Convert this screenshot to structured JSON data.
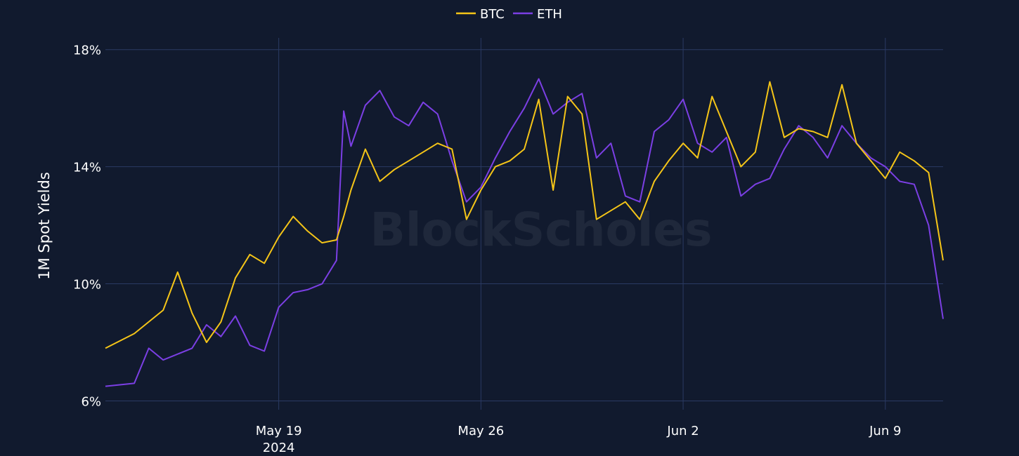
{
  "colors": {
    "background": "#111a2e",
    "grid": "#2a3a63",
    "btc": "#f5c518",
    "eth": "#7b3fe4"
  },
  "watermark": "BlockScholes",
  "chart_data": {
    "type": "line",
    "title": "",
    "xlabel": "",
    "ylabel": "1M Spot Yields",
    "y_unit": "%",
    "x_range": [
      "2024-05-13",
      "2024-06-11"
    ],
    "ylim": [
      5.7,
      18.4
    ],
    "yticks": [
      6,
      10,
      14,
      18
    ],
    "ytick_labels": [
      "6%",
      "10%",
      "14%",
      "18%"
    ],
    "xticks": [
      "2024-05-19",
      "2024-05-26",
      "2024-06-02",
      "2024-06-09"
    ],
    "xtick_labels": [
      "May 19",
      "May 26",
      "Jun 2",
      "Jun 9"
    ],
    "xtick_sublabels": [
      "2024",
      "",
      "",
      ""
    ],
    "grid": true,
    "legend_position": "top-center",
    "series": [
      {
        "name": "BTC",
        "color": "#f5c518",
        "points": [
          [
            "2024-05-13",
            7.8
          ],
          [
            "2024-05-14",
            8.3
          ],
          [
            "2024-05-15",
            9.1
          ],
          [
            "2024-05-15 12:00",
            10.4
          ],
          [
            "2024-05-16",
            9.0
          ],
          [
            "2024-05-16 12:00",
            8.0
          ],
          [
            "2024-05-17",
            8.7
          ],
          [
            "2024-05-17 12:00",
            10.2
          ],
          [
            "2024-05-18",
            11.0
          ],
          [
            "2024-05-18 12:00",
            10.7
          ],
          [
            "2024-05-19",
            11.6
          ],
          [
            "2024-05-19 12:00",
            12.3
          ],
          [
            "2024-05-20",
            11.8
          ],
          [
            "2024-05-20 12:00",
            11.4
          ],
          [
            "2024-05-21",
            11.5
          ],
          [
            "2024-05-21 06:00",
            12.3
          ],
          [
            "2024-05-21 12:00",
            13.2
          ],
          [
            "2024-05-22",
            14.6
          ],
          [
            "2024-05-22 12:00",
            13.5
          ],
          [
            "2024-05-23",
            13.9
          ],
          [
            "2024-05-23 12:00",
            14.2
          ],
          [
            "2024-05-24",
            14.5
          ],
          [
            "2024-05-24 12:00",
            14.8
          ],
          [
            "2024-05-25",
            14.6
          ],
          [
            "2024-05-25 12:00",
            12.2
          ],
          [
            "2024-05-26",
            13.2
          ],
          [
            "2024-05-26 12:00",
            14.0
          ],
          [
            "2024-05-27",
            14.2
          ],
          [
            "2024-05-27 12:00",
            14.6
          ],
          [
            "2024-05-28",
            16.3
          ],
          [
            "2024-05-28 12:00",
            13.2
          ],
          [
            "2024-05-29",
            16.4
          ],
          [
            "2024-05-29 12:00",
            15.8
          ],
          [
            "2024-05-30",
            12.2
          ],
          [
            "2024-05-30 12:00",
            12.5
          ],
          [
            "2024-05-31",
            12.8
          ],
          [
            "2024-05-31 12:00",
            12.2
          ],
          [
            "2024-06-01",
            13.5
          ],
          [
            "2024-06-01 12:00",
            14.2
          ],
          [
            "2024-06-02",
            14.8
          ],
          [
            "2024-06-02 12:00",
            14.3
          ],
          [
            "2024-06-03",
            16.4
          ],
          [
            "2024-06-03 12:00",
            15.2
          ],
          [
            "2024-06-04",
            14.0
          ],
          [
            "2024-06-04 12:00",
            14.5
          ],
          [
            "2024-06-05",
            16.9
          ],
          [
            "2024-06-05 12:00",
            15.0
          ],
          [
            "2024-06-06",
            15.3
          ],
          [
            "2024-06-06 12:00",
            15.2
          ],
          [
            "2024-06-07",
            15.0
          ],
          [
            "2024-06-07 12:00",
            16.8
          ],
          [
            "2024-06-08",
            14.8
          ],
          [
            "2024-06-08 12:00",
            14.2
          ],
          [
            "2024-06-09",
            13.6
          ],
          [
            "2024-06-09 12:00",
            14.5
          ],
          [
            "2024-06-10",
            14.2
          ],
          [
            "2024-06-10 12:00",
            13.8
          ],
          [
            "2024-06-11",
            10.8
          ]
        ]
      },
      {
        "name": "ETH",
        "color": "#7b3fe4",
        "points": [
          [
            "2024-05-13",
            6.5
          ],
          [
            "2024-05-14",
            6.6
          ],
          [
            "2024-05-14 12:00",
            7.8
          ],
          [
            "2024-05-15",
            7.4
          ],
          [
            "2024-05-16",
            7.8
          ],
          [
            "2024-05-16 12:00",
            8.6
          ],
          [
            "2024-05-17",
            8.2
          ],
          [
            "2024-05-17 12:00",
            8.9
          ],
          [
            "2024-05-18",
            7.9
          ],
          [
            "2024-05-18 12:00",
            7.7
          ],
          [
            "2024-05-19",
            9.2
          ],
          [
            "2024-05-19 12:00",
            9.7
          ],
          [
            "2024-05-20",
            9.8
          ],
          [
            "2024-05-20 12:00",
            10.0
          ],
          [
            "2024-05-21",
            10.8
          ],
          [
            "2024-05-21 06:00",
            15.9
          ],
          [
            "2024-05-21 12:00",
            14.7
          ],
          [
            "2024-05-22",
            16.1
          ],
          [
            "2024-05-22 12:00",
            16.6
          ],
          [
            "2024-05-23",
            15.7
          ],
          [
            "2024-05-23 12:00",
            15.4
          ],
          [
            "2024-05-24",
            16.2
          ],
          [
            "2024-05-24 12:00",
            15.8
          ],
          [
            "2024-05-25",
            14.2
          ],
          [
            "2024-05-25 12:00",
            12.8
          ],
          [
            "2024-05-26",
            13.3
          ],
          [
            "2024-05-26 12:00",
            14.3
          ],
          [
            "2024-05-27",
            15.2
          ],
          [
            "2024-05-27 12:00",
            16.0
          ],
          [
            "2024-05-28",
            17.0
          ],
          [
            "2024-05-28 12:00",
            15.8
          ],
          [
            "2024-05-29",
            16.2
          ],
          [
            "2024-05-29 12:00",
            16.5
          ],
          [
            "2024-05-30",
            14.3
          ],
          [
            "2024-05-30 12:00",
            14.8
          ],
          [
            "2024-05-31",
            13.0
          ],
          [
            "2024-05-31 12:00",
            12.8
          ],
          [
            "2024-06-01",
            15.2
          ],
          [
            "2024-06-01 12:00",
            15.6
          ],
          [
            "2024-06-02",
            16.3
          ],
          [
            "2024-06-02 12:00",
            14.8
          ],
          [
            "2024-06-03",
            14.5
          ],
          [
            "2024-06-03 12:00",
            15.0
          ],
          [
            "2024-06-04",
            13.0
          ],
          [
            "2024-06-04 12:00",
            13.4
          ],
          [
            "2024-06-05",
            13.6
          ],
          [
            "2024-06-05 12:00",
            14.6
          ],
          [
            "2024-06-06",
            15.4
          ],
          [
            "2024-06-06 12:00",
            15.0
          ],
          [
            "2024-06-07",
            14.3
          ],
          [
            "2024-06-07 12:00",
            15.4
          ],
          [
            "2024-06-08",
            14.8
          ],
          [
            "2024-06-08 12:00",
            14.3
          ],
          [
            "2024-06-09",
            14.0
          ],
          [
            "2024-06-09 12:00",
            13.5
          ],
          [
            "2024-06-10",
            13.4
          ],
          [
            "2024-06-10 12:00",
            12.0
          ],
          [
            "2024-06-11",
            8.8
          ]
        ]
      }
    ]
  }
}
